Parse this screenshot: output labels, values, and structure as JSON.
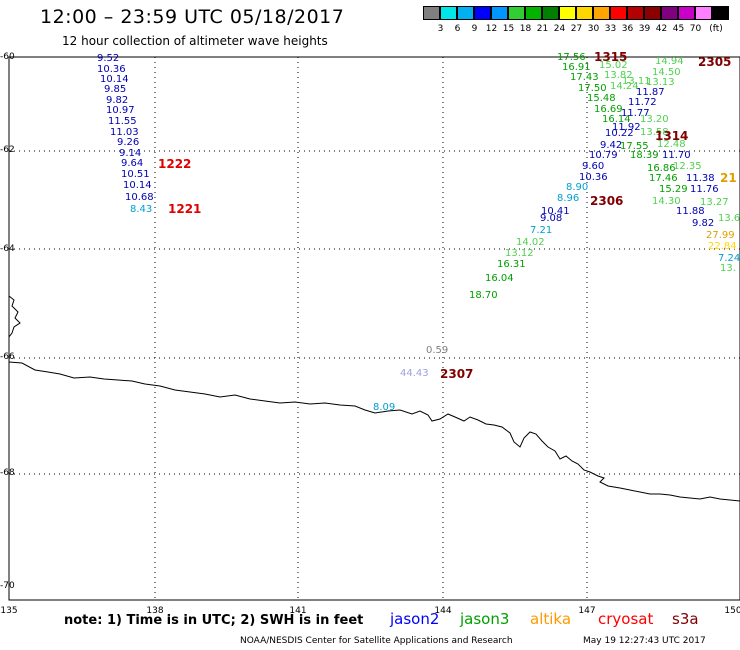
{
  "header": {
    "title": "12:00 – 23:59 UTC 05/18/2017",
    "subtitle": "12 hour collection of altimeter wave heights"
  },
  "scale": {
    "unit": "(ft)",
    "colors": [
      "#808080",
      "#00e6e6",
      "#00b0f0",
      "#0000ff",
      "#0096ff",
      "#32cd32",
      "#00b400",
      "#008000",
      "#ffff00",
      "#ffd700",
      "#ffa500",
      "#ff0000",
      "#b40000",
      "#8b0000",
      "#800080",
      "#c800c8",
      "#ff80ff",
      "#000000"
    ],
    "labels": [
      "3",
      "6",
      "9",
      "12",
      "15",
      "18",
      "21",
      "24",
      "27",
      "30",
      "33",
      "36",
      "39",
      "42",
      "45",
      "70"
    ]
  },
  "axes": {
    "lat_labels": [
      "-60",
      "-62",
      "-64",
      "-66",
      "-68",
      "-70"
    ],
    "lon_labels": [
      "135",
      "138",
      "141",
      "144",
      "147",
      "150"
    ]
  },
  "observations": [
    {
      "t": "9.52",
      "c": "#0000b4"
    },
    {
      "t": "10.36",
      "c": "#0000b4"
    },
    {
      "t": "10.14",
      "c": "#0000b4"
    },
    {
      "t": "9.85",
      "c": "#0000b4"
    },
    {
      "t": "9.82",
      "c": "#0000b4"
    },
    {
      "t": "10.97",
      "c": "#0000b4"
    },
    {
      "t": "11.55",
      "c": "#0000b4"
    },
    {
      "t": "11.03",
      "c": "#0000b4"
    },
    {
      "t": "9.26",
      "c": "#0000b4"
    },
    {
      "t": "9.14",
      "c": "#0000b4"
    },
    {
      "t": "9.64",
      "c": "#0000b4"
    },
    {
      "t": "10.51",
      "c": "#0000b4"
    },
    {
      "t": "10.14",
      "c": "#0000b4"
    },
    {
      "t": "10.68",
      "c": "#0000b4"
    },
    {
      "t": "8.43",
      "c": "#00a0d0"
    },
    {
      "t": "17.56",
      "c": "#00a000"
    },
    {
      "t": "16.91",
      "c": "#00a000"
    },
    {
      "t": "17.43",
      "c": "#00a000"
    },
    {
      "t": "17.50",
      "c": "#00a000"
    },
    {
      "t": "15.48",
      "c": "#00a000"
    },
    {
      "t": "16.69",
      "c": "#00a000"
    },
    {
      "t": "16.14",
      "c": "#00a000"
    },
    {
      "t": "11.92",
      "c": "#0000b4"
    },
    {
      "t": "10.22",
      "c": "#0000b4"
    },
    {
      "t": "9.42",
      "c": "#0000b4"
    },
    {
      "t": "10.79",
      "c": "#0000b4"
    },
    {
      "t": "9.60",
      "c": "#0000b4"
    },
    {
      "t": "10.36",
      "c": "#0000b4"
    },
    {
      "t": "8.90",
      "c": "#00a0d0"
    },
    {
      "t": "8.96",
      "c": "#00a0d0"
    },
    {
      "t": "10.41",
      "c": "#0000b4"
    },
    {
      "t": "9.08",
      "c": "#0000b4"
    },
    {
      "t": "7.21",
      "c": "#00a0d0"
    },
    {
      "t": "14.02",
      "c": "#50d050"
    },
    {
      "t": "13.12",
      "c": "#50d050"
    },
    {
      "t": "16.31",
      "c": "#00a000"
    },
    {
      "t": "16.04",
      "c": "#00a000"
    },
    {
      "t": "18.70",
      "c": "#00a000"
    },
    {
      "t": "15.02",
      "c": "#50d050"
    },
    {
      "t": "13.82",
      "c": "#50d050"
    },
    {
      "t": "14.24",
      "c": "#50d050"
    },
    {
      "t": "13.11",
      "c": "#50d050"
    },
    {
      "t": "11.77",
      "c": "#0000b4"
    },
    {
      "t": "13.20",
      "c": "#50d050"
    },
    {
      "t": "13.58",
      "c": "#50d050"
    },
    {
      "t": "17.55",
      "c": "#00a000"
    },
    {
      "t": "18.39",
      "c": "#00a000"
    },
    {
      "t": "16.86",
      "c": "#00a000"
    },
    {
      "t": "17.46",
      "c": "#00a000"
    },
    {
      "t": "15.29",
      "c": "#00a000"
    },
    {
      "t": "14.30",
      "c": "#50d050"
    },
    {
      "t": "14.94",
      "c": "#50d050"
    },
    {
      "t": "14.50",
      "c": "#50d050"
    },
    {
      "t": "13.13",
      "c": "#50d050"
    },
    {
      "t": "11.87",
      "c": "#0000b4"
    },
    {
      "t": "11.72",
      "c": "#0000b4"
    },
    {
      "t": "12.48",
      "c": "#50d050"
    },
    {
      "t": "11.70",
      "c": "#0000b4"
    },
    {
      "t": "12.35",
      "c": "#50d050"
    },
    {
      "t": "11.38",
      "c": "#0000b4"
    },
    {
      "t": "11.76",
      "c": "#0000b4"
    },
    {
      "t": "13.27",
      "c": "#50d050"
    },
    {
      "t": "11.88",
      "c": "#0000b4"
    },
    {
      "t": "13.6",
      "c": "#50d050"
    },
    {
      "t": "9.82",
      "c": "#0000b4"
    },
    {
      "t": "27.99",
      "c": "#e0a000"
    },
    {
      "t": "22.84",
      "c": "#ffd700"
    },
    {
      "t": "7.24",
      "c": "#00a0d0"
    },
    {
      "t": "13.",
      "c": "#50d050"
    },
    {
      "t": "0.59",
      "c": "#808080"
    },
    {
      "t": "44.43",
      "c": "#a0a0e0"
    },
    {
      "t": "8.09",
      "c": "#00a0d0"
    }
  ],
  "passes": [
    {
      "t": "1222",
      "c": "#e00000"
    },
    {
      "t": "1221",
      "c": "#e00000"
    },
    {
      "t": "1315",
      "c": "#800000"
    },
    {
      "t": "2305",
      "c": "#800000"
    },
    {
      "t": "1314",
      "c": "#800000"
    },
    {
      "t": "21",
      "c": "#e0a000"
    },
    {
      "t": "2306",
      "c": "#800000"
    },
    {
      "t": "2307",
      "c": "#800000"
    }
  ],
  "footer": {
    "note": "note:  1) Time is in UTC;  2) SWH is in feet",
    "satellites": [
      {
        "name": "jason2",
        "color": "#0000ff"
      },
      {
        "name": "jason3",
        "color": "#00a000"
      },
      {
        "name": "altika",
        "color": "#ff9900"
      },
      {
        "name": "cryosat",
        "color": "#ff0000"
      },
      {
        "name": "s3a",
        "color": "#800000"
      }
    ],
    "credit": "NOAA/NESDIS Center for Satellite Applications and Research",
    "timestamp": "May 19 12:27:43 UTC 2017"
  }
}
